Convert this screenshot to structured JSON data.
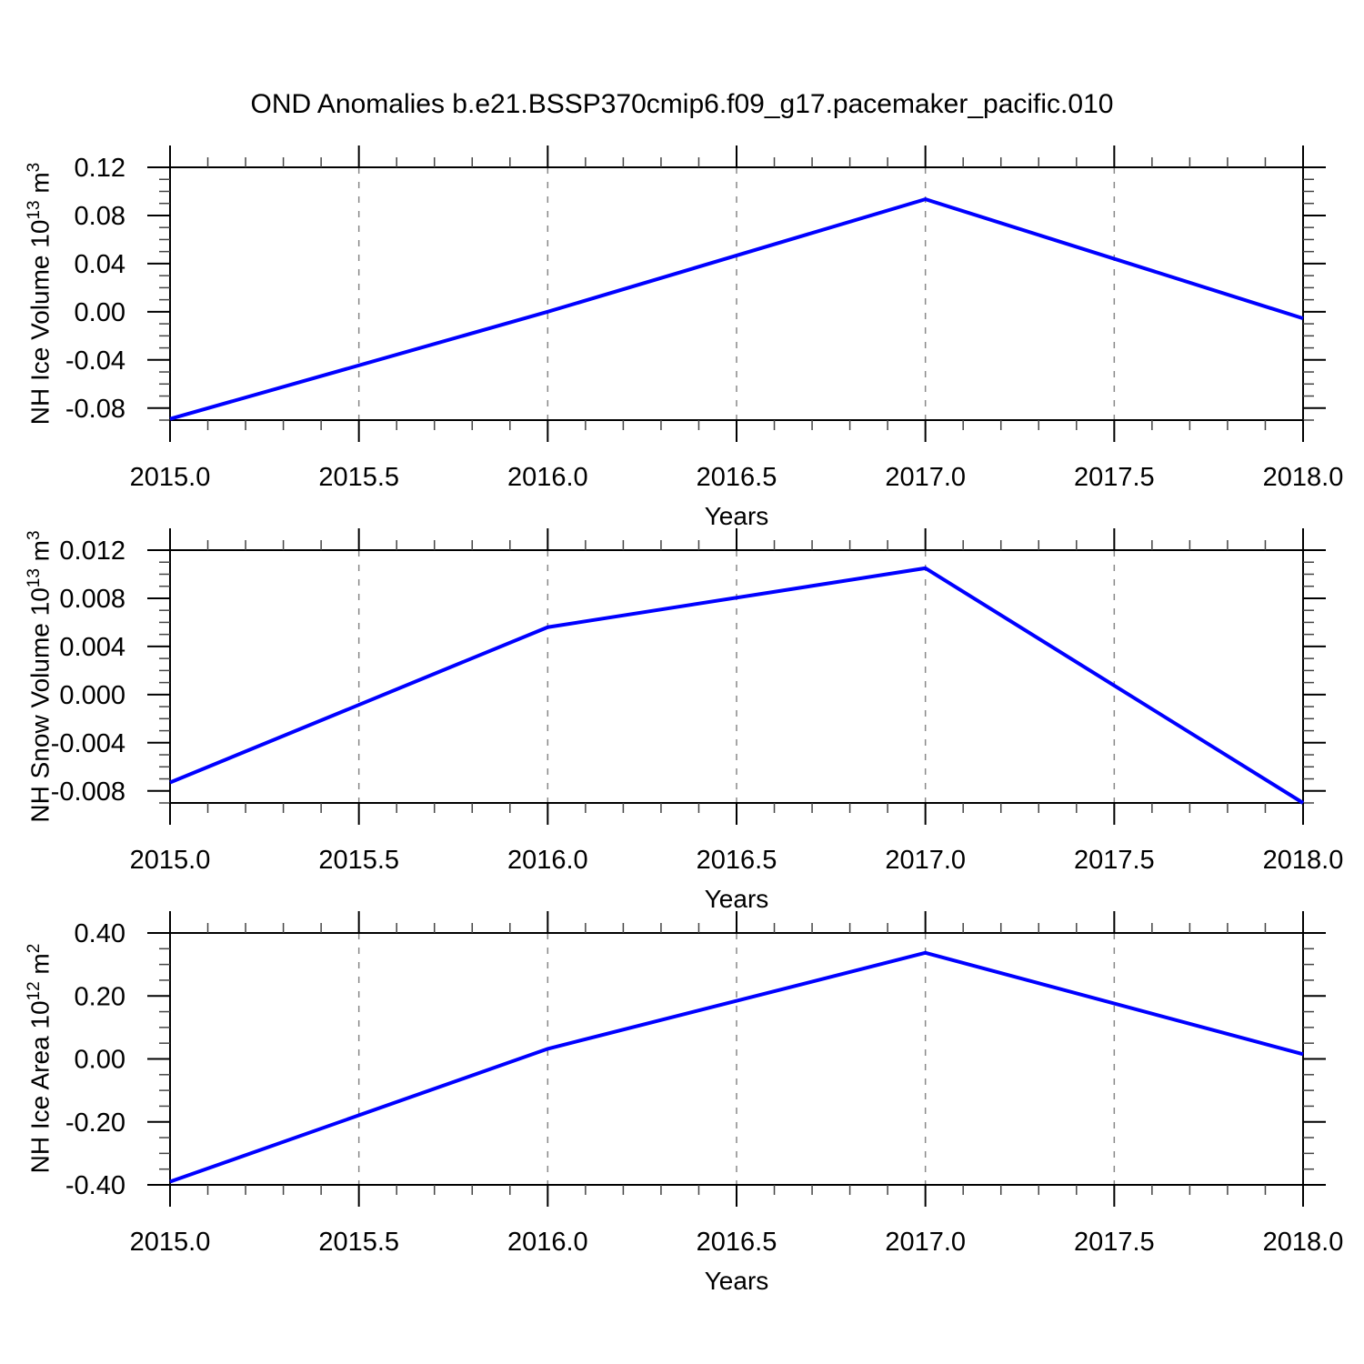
{
  "title": "OND Anomalies b.e21.BSSP370cmip6.f09_g17.pacemaker_pacific.010",
  "line_color": "#0000ff",
  "gridline_color": "#888888",
  "axis_color": "#000000",
  "chart_data": [
    {
      "type": "line",
      "name": "nh-ice-volume",
      "x": [
        2015.0,
        2016.0,
        2017.0,
        2018.0
      ],
      "values": [
        -0.089,
        0.0,
        0.0935,
        -0.0055
      ],
      "ylabel": {
        "base": "NH Ice Volume 10",
        "exp": "13",
        "unit": " m",
        "unit_exp": "3"
      },
      "xlabel": "Years",
      "xlim": [
        2015.0,
        2018.0
      ],
      "ylim": [
        -0.09,
        0.12
      ],
      "yticks": {
        "values": [
          0.12,
          0.08,
          0.04,
          0.0,
          -0.04,
          -0.08
        ],
        "labels": [
          "0.12",
          "0.08",
          "0.04",
          "0.00",
          "-0.04",
          "-0.08"
        ],
        "minor_step": 0.01
      },
      "xticks": {
        "values": [
          2015.0,
          2015.5,
          2016.0,
          2016.5,
          2017.0,
          2017.5,
          2018.0
        ],
        "labels": [
          "2015.0",
          "2015.5",
          "2016.0",
          "2016.5",
          "2017.0",
          "2017.5",
          "2018.0"
        ],
        "minor_step": 0.1
      },
      "gridlines_x": [
        2015.5,
        2016.0,
        2016.5,
        2017.0,
        2017.5
      ],
      "grid": "vertical-dashed"
    },
    {
      "type": "line",
      "name": "nh-snow-volume",
      "x": [
        2015.0,
        2016.0,
        2017.0,
        2018.0
      ],
      "values": [
        -0.0073,
        0.0056,
        0.0105,
        -0.009
      ],
      "ylabel": {
        "base": "NH Snow Volume 10",
        "exp": "13",
        "unit": " m",
        "unit_exp": "3"
      },
      "xlabel": "Years",
      "xlim": [
        2015.0,
        2018.0
      ],
      "ylim": [
        -0.009,
        0.012
      ],
      "yticks": {
        "values": [
          0.012,
          0.008,
          0.004,
          0.0,
          -0.004,
          -0.008
        ],
        "labels": [
          "0.012",
          "0.008",
          "0.004",
          "0.000",
          "-0.004",
          "-0.008"
        ],
        "minor_step": 0.001
      },
      "xticks": {
        "values": [
          2015.0,
          2015.5,
          2016.0,
          2016.5,
          2017.0,
          2017.5,
          2018.0
        ],
        "labels": [
          "2015.0",
          "2015.5",
          "2016.0",
          "2016.5",
          "2017.0",
          "2017.5",
          "2018.0"
        ],
        "minor_step": 0.1
      },
      "gridlines_x": [
        2015.5,
        2016.0,
        2016.5,
        2017.0,
        2017.5
      ],
      "grid": "vertical-dashed"
    },
    {
      "type": "line",
      "name": "nh-ice-area",
      "x": [
        2015.0,
        2016.0,
        2017.0,
        2018.0
      ],
      "values": [
        -0.39,
        0.032,
        0.337,
        0.015
      ],
      "ylabel": {
        "base": "NH Ice Area 10",
        "exp": "12",
        "unit": " m",
        "unit_exp": "2"
      },
      "xlabel": "Years",
      "xlim": [
        2015.0,
        2018.0
      ],
      "ylim": [
        -0.4,
        0.4
      ],
      "yticks": {
        "values": [
          0.4,
          0.2,
          0.0,
          -0.2,
          -0.4
        ],
        "labels": [
          "0.40",
          "0.20",
          "0.00",
          "-0.20",
          "-0.40"
        ],
        "minor_step": 0.05
      },
      "xticks": {
        "values": [
          2015.0,
          2015.5,
          2016.0,
          2016.5,
          2017.0,
          2017.5,
          2018.0
        ],
        "labels": [
          "2015.0",
          "2015.5",
          "2016.0",
          "2016.5",
          "2017.0",
          "2017.5",
          "2018.0"
        ],
        "minor_step": 0.1
      },
      "gridlines_x": [
        2015.5,
        2016.0,
        2016.5,
        2017.0,
        2017.5
      ],
      "grid": "vertical-dashed"
    }
  ]
}
